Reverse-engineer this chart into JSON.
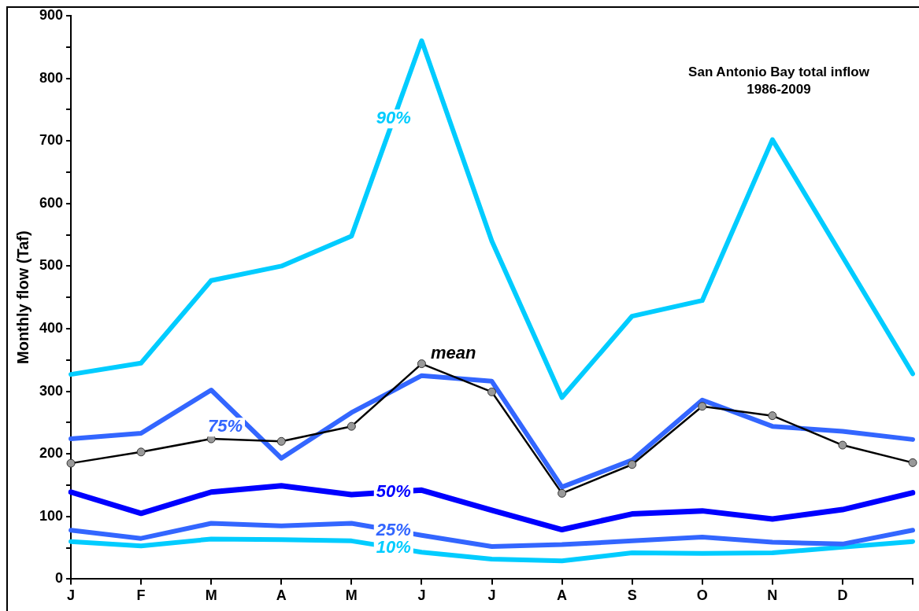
{
  "chart_data": {
    "type": "line",
    "title": "San Antonio Bay total inflow",
    "subtitle": "1986-2009",
    "ylabel": "Monthly flow (Taf)",
    "categories": [
      "J",
      "F",
      "M",
      "A",
      "M",
      "J",
      "J",
      "A",
      "S",
      "O",
      "N",
      "D",
      null
    ],
    "ylim": [
      0,
      900
    ],
    "yticks": [
      0,
      {
        "value": 50,
        "label": null
      },
      100,
      {
        "value": 150,
        "label": null
      },
      200,
      {
        "value": 250,
        "label": null
      },
      300,
      {
        "value": 350,
        "label": null
      },
      400,
      {
        "value": 450,
        "label": null
      },
      500,
      {
        "value": 550,
        "label": null
      },
      600,
      {
        "value": 650,
        "label": null
      },
      700,
      {
        "value": 750,
        "label": null
      },
      800,
      {
        "value": 850,
        "label": null
      },
      900
    ],
    "grid": false,
    "legend": false,
    "marker": "none",
    "line_style": "solid",
    "series": [
      {
        "name": "90%",
        "color": "#00ccff",
        "values": [
          327,
          345,
          477,
          500,
          548,
          860,
          540,
          290,
          420,
          445,
          702,
          515,
          328
        ]
      },
      {
        "name": "75%",
        "color": "#3366ff",
        "values": [
          224,
          233,
          302,
          193,
          266,
          325,
          316,
          147,
          190,
          286,
          244,
          236,
          223
        ]
      },
      {
        "name": "50%",
        "color": "#0000ff",
        "values": [
          139,
          105,
          139,
          149,
          135,
          142,
          110,
          79,
          104,
          109,
          96,
          111,
          138
        ]
      },
      {
        "name": "25%",
        "color": "#3366ff",
        "values": [
          78,
          65,
          89,
          85,
          89,
          70,
          52,
          55,
          61,
          67,
          59,
          56,
          78
        ]
      },
      {
        "name": "10%",
        "color": "#00ccff",
        "values": [
          60,
          53,
          64,
          63,
          61,
          43,
          32,
          29,
          42,
          41,
          42,
          51,
          60
        ]
      },
      {
        "name": "mean",
        "color": "#000000",
        "marker": "circle",
        "values": [
          185,
          203,
          224,
          220,
          244,
          344,
          299,
          137,
          183,
          276,
          261,
          214,
          186
        ]
      }
    ]
  }
}
